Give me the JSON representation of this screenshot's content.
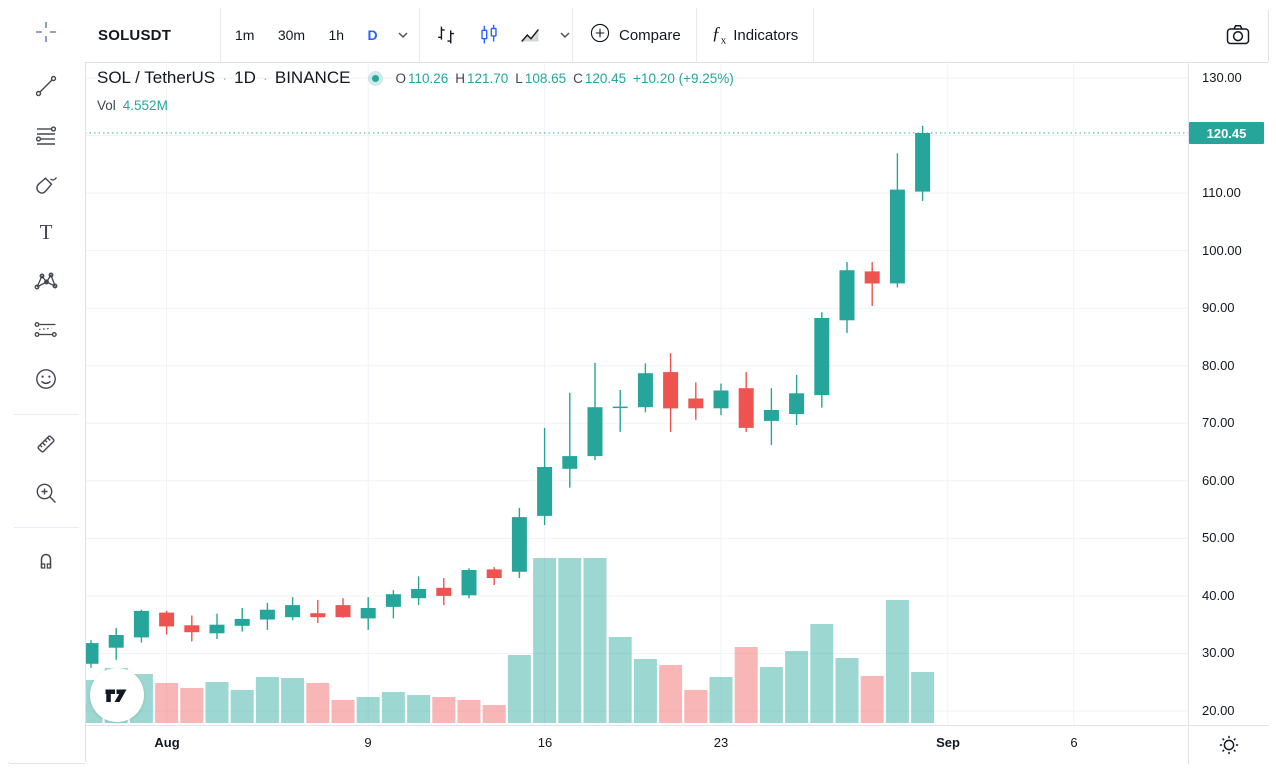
{
  "toolbar": {
    "symbol": "SOLUSDT",
    "timeframes": [
      "1m",
      "30m",
      "1h",
      "D"
    ],
    "active_timeframe": "D",
    "compare_label": "Compare",
    "indicators_label": "Indicators",
    "icons": [
      "chevron-down-icon",
      "bar-chart-style-icon",
      "candles-style-icon",
      "area-style-icon",
      "chevron-down-icon",
      "plus-circle-icon",
      "fx-icon",
      "camera-icon"
    ]
  },
  "header": {
    "title": "SOL / TetherUS",
    "dot": "·",
    "interval": "1D",
    "exchange": "BINANCE",
    "status_icon": "market-status-dot",
    "ohlc": {
      "o_label": "O",
      "o": "110.26",
      "h_label": "H",
      "h": "121.70",
      "l_label": "L",
      "l": "108.65",
      "c_label": "C",
      "c": "120.45",
      "change": "+10.20 (+9.25%)"
    },
    "volume_label": "Vol",
    "volume_value": "4.552M"
  },
  "sidebar": {
    "tools": [
      "crosshair",
      "trend-line",
      "fib-retracement",
      "brush",
      "text",
      "xabcd-pattern",
      "long-position",
      "emoji",
      "ruler",
      "zoom-in",
      "magnet"
    ]
  },
  "price_axis": {
    "last_price_label": "120.45"
  },
  "bottom_bar": {
    "settings_icon": "gear-icon"
  },
  "watermark": {
    "logo": "tradingview-logo"
  },
  "colors": {
    "up": "#26a69a",
    "down": "#ef5350",
    "volume_up": "rgba(38,166,154,0.45)",
    "volume_down": "rgba(239,83,80,0.42)",
    "accent_blue": "#2962ff",
    "grid": "#f0f3fa",
    "price_line": "#26a69a",
    "price_label_bg": "#26a69a"
  },
  "chart_data": {
    "type": "candlestick_with_volume",
    "symbol": "SOLUSDT",
    "interval": "1D",
    "exchange": "BINANCE",
    "ylim": [
      20,
      130
    ],
    "grid": true,
    "y_ticks": [
      "130.00",
      "110.00",
      "100.00",
      "90.00",
      "80.00",
      "70.00",
      "60.00",
      "50.00",
      "40.00",
      "30.00",
      "20.00"
    ],
    "x_ticks": [
      {
        "label": "Aug",
        "index": 3,
        "bold": true
      },
      {
        "label": "9",
        "index": 11,
        "bold": false
      },
      {
        "label": "16",
        "index": 18,
        "bold": false
      },
      {
        "label": "23",
        "index": 25,
        "bold": false
      },
      {
        "label": "Sep",
        "index": 34,
        "bold": true
      },
      {
        "label": "6",
        "index": 39,
        "bold": false
      }
    ],
    "last_price": 120.45,
    "volume_unit": "M",
    "candles": [
      {
        "d": "Jul 29",
        "o": 28.2,
        "h": 32.3,
        "l": 27.5,
        "c": 31.8,
        "v": 3.84
      },
      {
        "d": "Jul 30",
        "o": 31.0,
        "h": 34.4,
        "l": 28.9,
        "c": 33.2,
        "v": 4.91
      },
      {
        "d": "Jul 31",
        "o": 32.8,
        "h": 37.6,
        "l": 31.9,
        "c": 37.4,
        "v": 4.37
      },
      {
        "d": "Aug 1",
        "o": 37.1,
        "h": 37.4,
        "l": 33.3,
        "c": 34.7,
        "v": 3.57
      },
      {
        "d": "Aug 2",
        "o": 34.9,
        "h": 36.6,
        "l": 32.1,
        "c": 33.7,
        "v": 3.12
      },
      {
        "d": "Aug 3",
        "o": 33.5,
        "h": 36.9,
        "l": 32.5,
        "c": 35.0,
        "v": 3.66
      },
      {
        "d": "Aug 4",
        "o": 34.8,
        "h": 37.9,
        "l": 33.8,
        "c": 36.0,
        "v": 2.95
      },
      {
        "d": "Aug 5",
        "o": 35.9,
        "h": 38.8,
        "l": 34.1,
        "c": 37.6,
        "v": 4.11
      },
      {
        "d": "Aug 6",
        "o": 36.3,
        "h": 39.8,
        "l": 35.8,
        "c": 38.4,
        "v": 4.02
      },
      {
        "d": "Aug 7",
        "o": 37.0,
        "h": 39.3,
        "l": 35.3,
        "c": 36.3,
        "v": 3.57
      },
      {
        "d": "Aug 8",
        "o": 38.4,
        "h": 39.6,
        "l": 36.2,
        "c": 36.3,
        "v": 2.05
      },
      {
        "d": "Aug 9",
        "o": 36.1,
        "h": 39.8,
        "l": 34.1,
        "c": 37.9,
        "v": 2.32
      },
      {
        "d": "Aug 10",
        "o": 38.1,
        "h": 41.0,
        "l": 36.1,
        "c": 40.3,
        "v": 2.77
      },
      {
        "d": "Aug 11",
        "o": 39.6,
        "h": 43.4,
        "l": 38.4,
        "c": 41.2,
        "v": 2.5
      },
      {
        "d": "Aug 12",
        "o": 41.4,
        "h": 43.1,
        "l": 38.4,
        "c": 40.0,
        "v": 2.32
      },
      {
        "d": "Aug 13",
        "o": 40.1,
        "h": 44.8,
        "l": 39.6,
        "c": 44.5,
        "v": 2.05,
        "vol_dir": "down"
      },
      {
        "d": "Aug 14",
        "o": 44.6,
        "h": 45.0,
        "l": 41.9,
        "c": 43.1,
        "v": 1.61
      },
      {
        "d": "Aug 15",
        "o": 44.2,
        "h": 55.3,
        "l": 43.1,
        "c": 53.7,
        "v": 6.07
      },
      {
        "d": "Aug 16",
        "o": 53.9,
        "h": 69.2,
        "l": 52.3,
        "c": 62.4,
        "v": 14.73
      },
      {
        "d": "Aug 17",
        "o": 62.1,
        "h": 75.3,
        "l": 58.8,
        "c": 64.3,
        "v": 14.73
      },
      {
        "d": "Aug 18",
        "o": 64.3,
        "h": 80.5,
        "l": 63.6,
        "c": 72.8,
        "v": 14.73
      },
      {
        "d": "Aug 19",
        "o": 72.7,
        "h": 75.8,
        "l": 68.5,
        "c": 72.9,
        "v": 7.68
      },
      {
        "d": "Aug 20",
        "o": 72.8,
        "h": 80.4,
        "l": 71.9,
        "c": 78.7,
        "v": 5.71
      },
      {
        "d": "Aug 21",
        "o": 78.9,
        "h": 82.2,
        "l": 68.5,
        "c": 72.6,
        "v": 5.18
      },
      {
        "d": "Aug 22",
        "o": 74.3,
        "h": 77.1,
        "l": 70.6,
        "c": 72.6,
        "v": 2.95
      },
      {
        "d": "Aug 23",
        "o": 72.6,
        "h": 76.9,
        "l": 71.4,
        "c": 75.7,
        "v": 4.11
      },
      {
        "d": "Aug 24",
        "o": 76.1,
        "h": 78.9,
        "l": 68.5,
        "c": 69.2,
        "v": 6.78
      },
      {
        "d": "Aug 25",
        "o": 70.4,
        "h": 76.1,
        "l": 66.2,
        "c": 72.3,
        "v": 5.0
      },
      {
        "d": "Aug 26",
        "o": 71.6,
        "h": 78.4,
        "l": 69.7,
        "c": 75.2,
        "v": 6.43
      },
      {
        "d": "Aug 27",
        "o": 74.9,
        "h": 89.3,
        "l": 72.7,
        "c": 88.3,
        "v": 8.84
      },
      {
        "d": "Aug 28",
        "o": 87.9,
        "h": 98.0,
        "l": 85.7,
        "c": 96.6,
        "v": 5.8
      },
      {
        "d": "Aug 29",
        "o": 96.4,
        "h": 98.0,
        "l": 90.4,
        "c": 94.3,
        "v": 4.2
      },
      {
        "d": "Aug 30",
        "o": 94.3,
        "h": 116.9,
        "l": 93.6,
        "c": 110.6,
        "v": 10.98
      },
      {
        "d": "Aug 31",
        "o": 110.26,
        "h": 121.7,
        "l": 108.65,
        "c": 120.45,
        "v": 4.552
      }
    ]
  }
}
